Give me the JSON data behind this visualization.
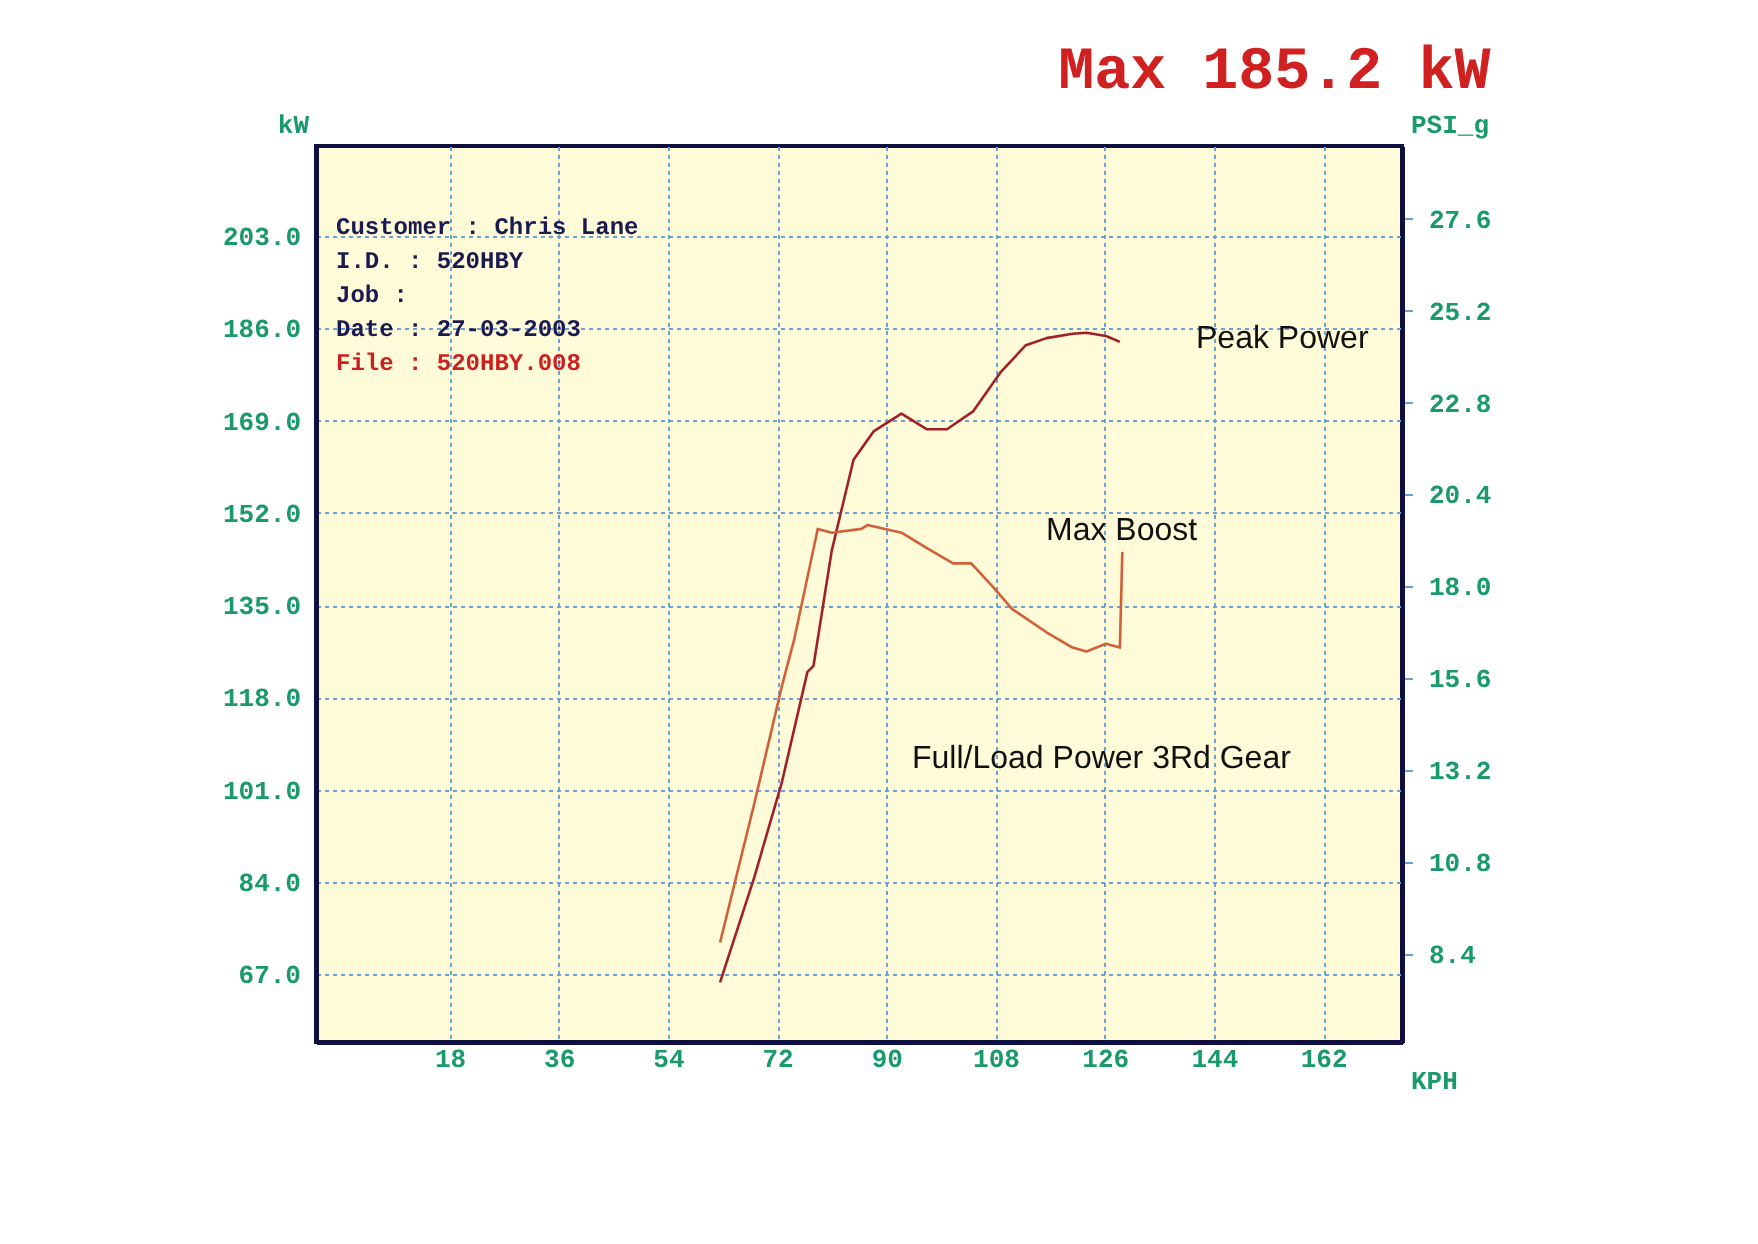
{
  "chart_data": {
    "type": "line",
    "title": "Max 185.2 kW",
    "xlabel": "KPH",
    "ylabel": "kW",
    "y2label": "PSI_g",
    "xlim": [
      -4,
      175
    ],
    "xticks": [
      18,
      36,
      54,
      72,
      90,
      108,
      126,
      144,
      162
    ],
    "ylim": [
      54.5,
      219.6
    ],
    "yticks": [
      {
        "value": 67,
        "label": "67.0"
      },
      {
        "value": 84,
        "label": "84.0"
      },
      {
        "value": 101,
        "label": "101.0"
      },
      {
        "value": 118,
        "label": "118.0"
      },
      {
        "value": 135,
        "label": "135.0"
      },
      {
        "value": 152,
        "label": "152.0"
      },
      {
        "value": 169,
        "label": "169.0"
      },
      {
        "value": 186,
        "label": "186.0"
      },
      {
        "value": 203,
        "label": "203.0"
      }
    ],
    "y2lim": [
      6.1,
      29.5
    ],
    "y2ticks": [
      {
        "value": 8.4,
        "label": "8.4"
      },
      {
        "value": 10.8,
        "label": "10.8"
      },
      {
        "value": 13.2,
        "label": "13.2"
      },
      {
        "value": 15.6,
        "label": "15.6"
      },
      {
        "value": 18.0,
        "label": "18.0"
      },
      {
        "value": 20.4,
        "label": "20.4"
      },
      {
        "value": 22.8,
        "label": "22.8"
      },
      {
        "value": 25.2,
        "label": "25.2"
      },
      {
        "value": 27.6,
        "label": "27.6"
      }
    ],
    "grid": true,
    "annotations": [
      "Customer : Chris Lane",
      "I.D.     : 520HBY",
      "Job      :",
      "Date     : 27-03-2003",
      "File     : 520HBY.008",
      "Peak Power",
      "Max Boost",
      "Full/Load Power 3Rd Gear"
    ],
    "series": [
      {
        "color": "#a0202a",
        "x": [
          62.6,
          68.2,
          72.8,
          77,
          78,
          81,
          84.6,
          87.9,
          92.5,
          96.7,
          100,
          104.3,
          108.9,
          113,
          116.4,
          120.7,
          123,
          126.2,
          128.5
        ],
        "values": [
          65.5,
          84.7,
          102.4,
          122.7,
          123.8,
          145,
          161.8,
          167,
          170.3,
          167.4,
          167.4,
          170.7,
          178,
          182.9,
          184.2,
          185,
          185.2,
          184.6,
          183.5
        ]
      },
      {
        "color": "#d0603a",
        "axis": "y2",
        "x": [
          62.6,
          68.2,
          72.8,
          74.8,
          78.7,
          81,
          85.9,
          86.9,
          92.5,
          96.7,
          101,
          104,
          107.5,
          110.8,
          116.4,
          120.7,
          123,
          126.2,
          128.5,
          128.9
        ],
        "values": [
          8.7,
          12.3,
          15.4,
          16.6,
          19.5,
          19.4,
          19.5,
          19.6,
          19.4,
          19.0,
          18.6,
          18.6,
          18.0,
          17.4,
          16.8,
          16.4,
          16.3,
          16.5,
          16.4,
          18.9
        ]
      }
    ]
  }
}
